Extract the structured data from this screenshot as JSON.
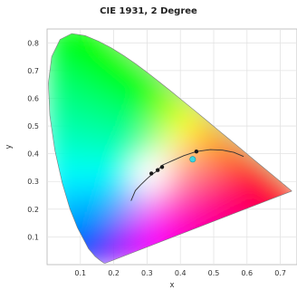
{
  "chart_data": {
    "type": "scatter",
    "title": "CIE 1931, 2 Degree",
    "xlabel": "x",
    "ylabel": "y",
    "xlim": [
      0,
      0.75
    ],
    "ylim": [
      0,
      0.85
    ],
    "x_ticks": [
      "0.1",
      "0.2",
      "0.3",
      "0.4",
      "0.5",
      "0.6",
      "0.7"
    ],
    "y_ticks": [
      "0.1",
      "0.2",
      "0.3",
      "0.4",
      "0.5",
      "0.6",
      "0.7",
      "0.8"
    ],
    "grid": true,
    "spectral_locus": [
      [
        0.1741,
        0.005
      ],
      [
        0.1733,
        0.0048
      ],
      [
        0.1726,
        0.0048
      ],
      [
        0.1714,
        0.0051
      ],
      [
        0.1689,
        0.0069
      ],
      [
        0.1644,
        0.0109
      ],
      [
        0.1566,
        0.0177
      ],
      [
        0.144,
        0.0297
      ],
      [
        0.1241,
        0.0578
      ],
      [
        0.0913,
        0.1327
      ],
      [
        0.0687,
        0.2007
      ],
      [
        0.0454,
        0.295
      ],
      [
        0.0235,
        0.4127
      ],
      [
        0.0082,
        0.5384
      ],
      [
        0.0039,
        0.6548
      ],
      [
        0.0139,
        0.7502
      ],
      [
        0.0389,
        0.812
      ],
      [
        0.0743,
        0.8338
      ],
      [
        0.1142,
        0.8262
      ],
      [
        0.1547,
        0.8059
      ],
      [
        0.1929,
        0.7816
      ],
      [
        0.2296,
        0.7543
      ],
      [
        0.2658,
        0.7243
      ],
      [
        0.3016,
        0.6923
      ],
      [
        0.3373,
        0.6589
      ],
      [
        0.3731,
        0.6245
      ],
      [
        0.4087,
        0.5896
      ],
      [
        0.4441,
        0.5547
      ],
      [
        0.4788,
        0.5202
      ],
      [
        0.5125,
        0.4866
      ],
      [
        0.5448,
        0.4544
      ],
      [
        0.5752,
        0.4242
      ],
      [
        0.6029,
        0.3965
      ],
      [
        0.627,
        0.3725
      ],
      [
        0.6482,
        0.3514
      ],
      [
        0.6658,
        0.334
      ],
      [
        0.6801,
        0.3197
      ],
      [
        0.6915,
        0.3083
      ],
      [
        0.7006,
        0.2993
      ],
      [
        0.7079,
        0.292
      ],
      [
        0.714,
        0.2859
      ],
      [
        0.719,
        0.2809
      ],
      [
        0.723,
        0.277
      ],
      [
        0.726,
        0.274
      ],
      [
        0.7283,
        0.2717
      ],
      [
        0.73,
        0.27
      ],
      [
        0.7311,
        0.2689
      ],
      [
        0.732,
        0.268
      ],
      [
        0.7327,
        0.2673
      ],
      [
        0.7334,
        0.2666
      ],
      [
        0.734,
        0.266
      ],
      [
        0.7344,
        0.2656
      ],
      [
        0.7346,
        0.2654
      ],
      [
        0.7347,
        0.2653
      ]
    ],
    "planckian_locus": [
      [
        0.252,
        0.23
      ],
      [
        0.265,
        0.267
      ],
      [
        0.281,
        0.288
      ],
      [
        0.3,
        0.31
      ],
      [
        0.313,
        0.324
      ],
      [
        0.33,
        0.338
      ],
      [
        0.346,
        0.359
      ],
      [
        0.38,
        0.377
      ],
      [
        0.41,
        0.393
      ],
      [
        0.448,
        0.408
      ],
      [
        0.49,
        0.415
      ],
      [
        0.527,
        0.413
      ],
      [
        0.56,
        0.405
      ],
      [
        0.59,
        0.39
      ]
    ],
    "points": [
      {
        "x": 0.313,
        "y": 0.329,
        "color": "#1a1a1a"
      },
      {
        "x": 0.332,
        "y": 0.341,
        "color": "#1a1a1a"
      },
      {
        "x": 0.345,
        "y": 0.352,
        "color": "#1a1a1a"
      },
      {
        "x": 0.448,
        "y": 0.408,
        "color": "#1a1a1a"
      },
      {
        "x": 0.437,
        "y": 0.38,
        "color": "#3ad6e0"
      }
    ]
  }
}
